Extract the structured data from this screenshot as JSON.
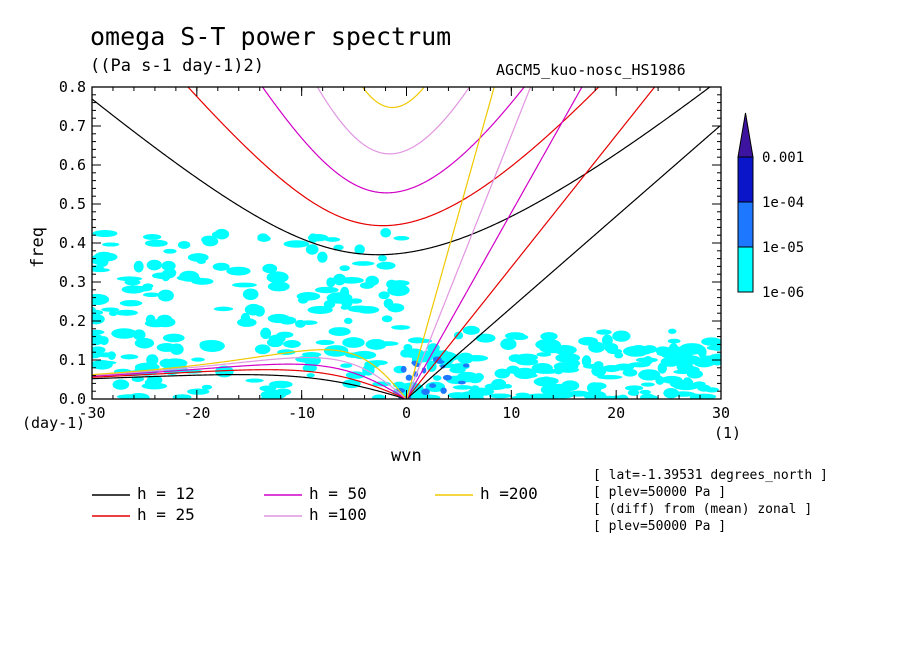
{
  "header": {
    "title": "omega S-T power spectrum",
    "subtitle": "((Pa s-1 day-1)2)",
    "source": "AGCM5_kuo-nosc_HS1986"
  },
  "chart_data": {
    "type": "heatmap",
    "title": "omega S-T power spectrum",
    "subtitle": "((Pa s-1 day-1)2)",
    "xlabel": "wvn",
    "ylabel": "freq",
    "x_unit": "(1)",
    "y_unit": "(day-1)",
    "xlim": [
      -30,
      30
    ],
    "ylim": [
      0,
      0.8
    ],
    "x_ticks": [
      -30,
      -20,
      -10,
      0,
      10,
      20,
      30
    ],
    "x_tick_labels": [
      "-30",
      "-20",
      "-10",
      "0",
      "10",
      "20",
      "30"
    ],
    "y_ticks": [
      0,
      0.1,
      0.2,
      0.3,
      0.4,
      0.5,
      0.6,
      0.7,
      0.8
    ],
    "y_tick_labels": [
      "0.0",
      "0.1",
      "0.2",
      "0.3",
      "0.4",
      "0.5",
      "0.6",
      "0.7",
      "0.8"
    ],
    "colorbar": {
      "levels": [
        "1e-06",
        "1e-05",
        "1e-04",
        "0.001"
      ],
      "colors": [
        "#00ffff",
        "#1e78ff",
        "#0a14c8",
        "#3c14a0"
      ]
    },
    "dispersion_curves": [
      {
        "label": "h = 12",
        "h": 12,
        "color": "#000000"
      },
      {
        "label": "h = 25",
        "h": 25,
        "color": "#e60000"
      },
      {
        "label": "h = 50",
        "h": 50,
        "color": "#d200c8"
      },
      {
        "label": "h =100",
        "h": 100,
        "color": "#e196e1"
      },
      {
        "label": "h =200",
        "h": 200,
        "color": "#f0c800"
      }
    ],
    "legend_placement": "bottom-left"
  },
  "info": [
    "[ lat=-1.39531 degrees_north ]",
    "[ plev=50000 Pa ]",
    "[ (diff) from (mean) zonal ]",
    "[ plev=50000 Pa ]"
  ]
}
